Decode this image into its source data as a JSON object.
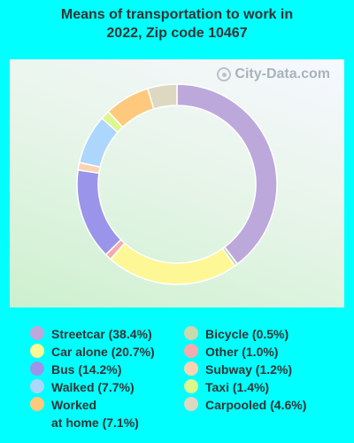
{
  "chart_data": {
    "type": "pie",
    "title_lines": [
      "Means of transportation to work in",
      "2022, Zip code 10467"
    ],
    "watermark": "City-Data.com",
    "legend_placement": "bottom",
    "slices": [
      {
        "label": "Streetcar (38.4%)",
        "value": 38.4,
        "color": "#bda8db"
      },
      {
        "label": "Bicycle (0.5%)",
        "value": 0.5,
        "color": "#c9d8ae"
      },
      {
        "label": "Car alone (20.7%)",
        "value": 20.7,
        "color": "#fdf796"
      },
      {
        "label": "Other (1.0%)",
        "value": 1.0,
        "color": "#f4abad"
      },
      {
        "label": "Bus (14.2%)",
        "value": 14.2,
        "color": "#9a95ea"
      },
      {
        "label": "Subway (1.2%)",
        "value": 1.2,
        "color": "#fcd3b1"
      },
      {
        "label": "Walked (7.7%)",
        "value": 7.7,
        "color": "#acd6fb"
      },
      {
        "label": "Taxi (1.4%)",
        "value": 1.4,
        "color": "#dcf78e"
      },
      {
        "label": "Worked at home (7.1%)",
        "value": 7.1,
        "color": "#fec97c",
        "label_lines": [
          "Worked",
          "at home (7.1%)"
        ]
      },
      {
        "label": "Carpooled (4.6%)",
        "value": 4.6,
        "color": "#ddd8c1"
      }
    ],
    "legend_left": [
      0,
      2,
      4,
      6,
      8
    ],
    "legend_right": [
      1,
      3,
      5,
      7,
      9
    ]
  }
}
